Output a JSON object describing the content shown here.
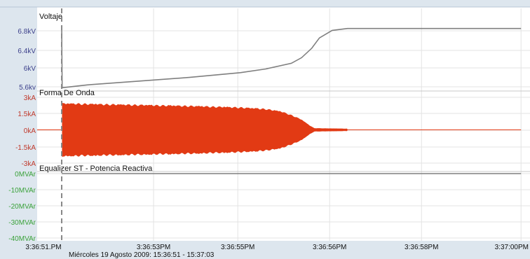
{
  "chart_data": [
    {
      "type": "line",
      "title": "Voltaje",
      "y_ticks": [
        "6.8kV",
        "6.4kV",
        "6kV",
        "5.6kv"
      ],
      "y_tick_values": [
        6.8,
        6.4,
        6.0,
        5.6
      ],
      "ylim": [
        5.55,
        6.98
      ],
      "color": "#7f7f7f",
      "tick_color": "#3b3f8a",
      "series": [
        {
          "x": [
            "3:36:51.5",
            "3:36:51.5",
            "3:36:51.51",
            "3:36:52",
            "3:36:53",
            "3:36:54",
            "3:36:55",
            "3:36:55.5",
            "3:36:56",
            "3:36:56.2",
            "3:36:56.4",
            "3:36:56.55",
            "3:36:56.8",
            "3:36:57.1",
            "3:36:58",
            "3:36:59",
            "3:37:00.5"
          ],
          "values": [
            6.8,
            6.8,
            5.56,
            5.62,
            5.7,
            5.78,
            5.88,
            5.96,
            6.08,
            6.2,
            6.4,
            6.62,
            6.78,
            6.82,
            6.82,
            6.82,
            6.82
          ]
        }
      ]
    },
    {
      "type": "area",
      "title": "Forma De Onda",
      "y_ticks": [
        "3kA",
        "1.5kA",
        "0kA",
        "-1.5kA",
        "-3kA"
      ],
      "y_tick_values": [
        3,
        1.5,
        0,
        -1.5,
        -3
      ],
      "ylim": [
        -3.15,
        3.15
      ],
      "color": "#e23a14",
      "tick_color": "#c0392b",
      "envelope": {
        "x": [
          "3:36:51.51",
          "3:36:52",
          "3:36:53",
          "3:36:54",
          "3:36:55",
          "3:36:55.5",
          "3:36:55.8",
          "3:36:56",
          "3:36:56.2",
          "3:36:56.35",
          "3:36:56.45",
          "3:36:57.1"
        ],
        "amplitude": [
          2.6,
          2.55,
          2.45,
          2.35,
          2.2,
          2.05,
          1.8,
          1.45,
          1.0,
          0.45,
          0.15,
          0.1
        ]
      },
      "baseline_end": "3:37:00.5"
    },
    {
      "type": "line",
      "title": "Equalizer ST - Potencia Reactiva",
      "y_ticks": [
        "0MVAr",
        "-10MVAr",
        "-20MVAr",
        "-30MVAr",
        "-40MVAr"
      ],
      "y_tick_values": [
        0,
        -10,
        -20,
        -30,
        -40
      ],
      "ylim": [
        -40,
        0
      ],
      "color": "#7f7f7f",
      "tick_color": "#3aa13a",
      "series": [
        {
          "x": [
            "3:36:51.5",
            "3:37:00.5"
          ],
          "values": [
            0,
            0
          ]
        }
      ]
    }
  ],
  "x_axis": {
    "ticks": [
      "3:36:51.PM",
      "3:36:53PM",
      "3:36:55PM",
      "3:36:56PM",
      "3:36:58PM",
      "3:37:00PM"
    ],
    "range_label": "Miércoles 19 Agosto 2009: 15:36:51 - 15:37:03"
  },
  "colors": {
    "background": "#ffffff",
    "frame": "#dde6ee",
    "grid": "#e3e3e3",
    "cursor": "#888888"
  }
}
